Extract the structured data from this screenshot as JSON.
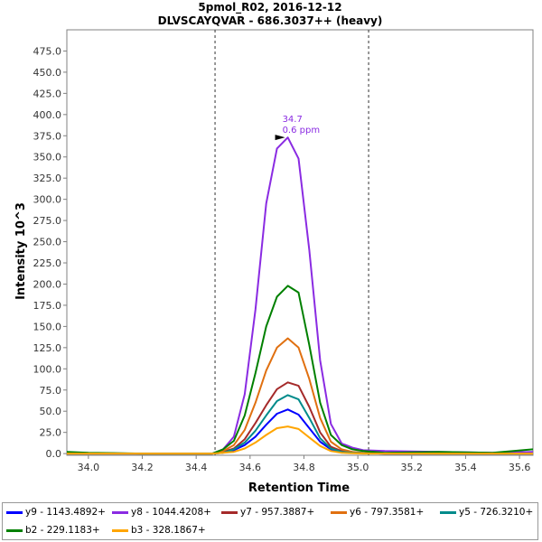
{
  "chart_data": {
    "type": "line",
    "title": "5pmol_R02, 2016-12-12",
    "subtitle": "DLVSCAYQVAR - 686.3037++ (heavy)",
    "xlabel": "Retention Time",
    "ylabel": "Intensity 10^3",
    "xlim": [
      33.92,
      35.65
    ],
    "ylim": [
      -2,
      500
    ],
    "xticks": [
      "34.0",
      "34.2",
      "34.4",
      "34.6",
      "34.8",
      "35.0",
      "35.2",
      "35.4",
      "35.6"
    ],
    "yticks": [
      "0.0",
      "25.0",
      "50.0",
      "75.0",
      "100.0",
      "125.0",
      "150.0",
      "175.0",
      "200.0",
      "225.0",
      "250.0",
      "275.0",
      "300.0",
      "325.0",
      "350.0",
      "375.0",
      "400.0",
      "425.0",
      "450.0",
      "475.0"
    ],
    "grid": false,
    "integration_bounds": [
      34.47,
      35.04
    ],
    "annotation": {
      "x": 34.74,
      "y": 373,
      "line1": "34.7",
      "line2": "0.6 ppm",
      "color": "#8a2be2"
    },
    "x": [
      33.92,
      34.0,
      34.2,
      34.4,
      34.46,
      34.5,
      34.54,
      34.58,
      34.62,
      34.66,
      34.7,
      34.74,
      34.78,
      34.82,
      34.86,
      34.9,
      34.94,
      34.98,
      35.02,
      35.1,
      35.3,
      35.5,
      35.65
    ],
    "series": [
      {
        "name": "y9 - 1143.4892+",
        "color": "#0000ff",
        "values": [
          0,
          0,
          0,
          0,
          0,
          1,
          4,
          10,
          20,
          34,
          47,
          52,
          46,
          30,
          14,
          5,
          2,
          1,
          0.5,
          0,
          0,
          0,
          0
        ]
      },
      {
        "name": "y8 - 1044.4208+",
        "color": "#8a2be2",
        "values": [
          1,
          0.5,
          0,
          0,
          0,
          5,
          20,
          70,
          170,
          295,
          360,
          373,
          348,
          240,
          110,
          35,
          12,
          7,
          4,
          3,
          2,
          1,
          2
        ]
      },
      {
        "name": "y7 - 957.3887+",
        "color": "#a52a2a",
        "values": [
          0,
          0,
          0,
          0,
          0,
          2,
          6,
          17,
          36,
          57,
          76,
          84,
          80,
          55,
          25,
          8,
          3,
          1,
          0.5,
          0,
          0,
          0,
          0
        ]
      },
      {
        "name": "y6 - 797.3581+",
        "color": "#e07010",
        "values": [
          0,
          0,
          0,
          0,
          0,
          3,
          10,
          28,
          60,
          98,
          125,
          136,
          125,
          88,
          42,
          14,
          5,
          2,
          1,
          0,
          0,
          0,
          0
        ]
      },
      {
        "name": "y5 - 726.3210+",
        "color": "#008b8b",
        "values": [
          0,
          0,
          0,
          0,
          0,
          1,
          5,
          13,
          27,
          45,
          62,
          69,
          64,
          42,
          18,
          6,
          2,
          1,
          0.5,
          0,
          0,
          0,
          0
        ]
      },
      {
        "name": "b2 - 229.1183+",
        "color": "#008000",
        "values": [
          2,
          1,
          0,
          0,
          0,
          5,
          15,
          45,
          95,
          150,
          185,
          198,
          190,
          128,
          60,
          22,
          10,
          5,
          3,
          1,
          2,
          1,
          5
        ]
      },
      {
        "name": "b3 - 328.1867+",
        "color": "#ffa500",
        "values": [
          0,
          0,
          0,
          0,
          0,
          1,
          2,
          6,
          13,
          22,
          30,
          32,
          29,
          19,
          9,
          3,
          1,
          0.5,
          0,
          0,
          0,
          0,
          0
        ]
      }
    ]
  }
}
